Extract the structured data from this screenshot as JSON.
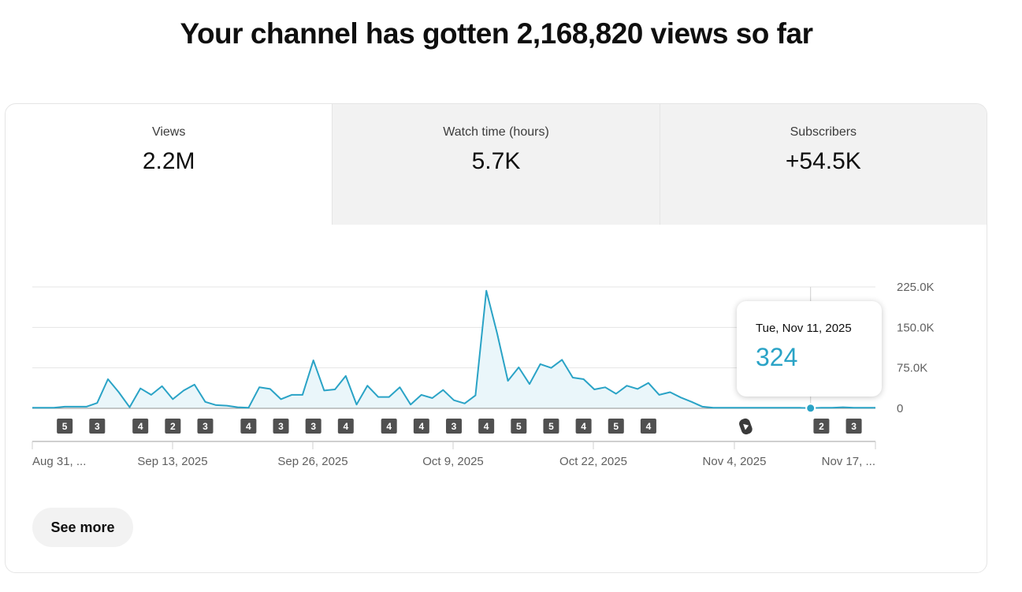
{
  "headline": "Your channel has gotten 2,168,820 views so far",
  "tabs": [
    {
      "label": "Views",
      "value": "2.2M",
      "active": true
    },
    {
      "label": "Watch time (hours)",
      "value": "5.7K",
      "active": false
    },
    {
      "label": "Subscribers",
      "value": "+54.5K",
      "active": false
    }
  ],
  "see_more_label": "See more",
  "tooltip": {
    "date": "Tue, Nov 11, 2025",
    "value": "324"
  },
  "colors": {
    "line": "#2aa3c6",
    "area": "#eaf6fa",
    "marker_bg": "#505050",
    "grid": "#e5e5e5"
  },
  "chart_data": {
    "type": "area",
    "metric": "Views",
    "x_tick_labels": [
      "Aug 31, ...",
      "Sep 13, 2025",
      "Sep 26, 2025",
      "Oct 9, 2025",
      "Oct 22, 2025",
      "Nov 4, 2025",
      "Nov 17, ..."
    ],
    "y_tick_labels": [
      "0",
      "75.0K",
      "150.0K",
      "225.0K"
    ],
    "ylim": [
      0,
      225000
    ],
    "grid": true,
    "start_date": "Aug 31, 2025",
    "values": [
      1000,
      1000,
      1000,
      3000,
      3000,
      3000,
      10000,
      54000,
      30000,
      2000,
      37000,
      25000,
      41000,
      17000,
      33000,
      44000,
      12000,
      6000,
      5000,
      2000,
      1000,
      39000,
      36000,
      17000,
      25000,
      25000,
      89000,
      33000,
      35000,
      60000,
      7000,
      42000,
      21000,
      21000,
      39000,
      7000,
      25000,
      19000,
      34000,
      15000,
      9000,
      24000,
      218000,
      139000,
      51000,
      76000,
      45000,
      82000,
      75000,
      90000,
      57000,
      54000,
      35000,
      39000,
      27000,
      42000,
      36000,
      47000,
      25000,
      30000,
      20000,
      12000,
      3000,
      1000,
      1000,
      1000,
      1000,
      1000,
      1000,
      1000,
      1000,
      1000,
      324,
      1000,
      1000,
      2000,
      1000,
      1000,
      1000
    ],
    "upload_markers": [
      {
        "date": "Sep 3, 2025",
        "count": "5"
      },
      {
        "date": "Sep 6, 2025",
        "count": "3"
      },
      {
        "date": "Sep 10, 2025",
        "count": "4"
      },
      {
        "date": "Sep 13, 2025",
        "count": "2"
      },
      {
        "date": "Sep 16, 2025",
        "count": "3"
      },
      {
        "date": "Sep 20, 2025",
        "count": "4"
      },
      {
        "date": "Sep 23, 2025",
        "count": "3"
      },
      {
        "date": "Sep 26, 2025",
        "count": "3"
      },
      {
        "date": "Sep 29, 2025",
        "count": "4"
      },
      {
        "date": "Oct 3, 2025",
        "count": "4"
      },
      {
        "date": "Oct 6, 2025",
        "count": "4"
      },
      {
        "date": "Oct 9, 2025",
        "count": "3"
      },
      {
        "date": "Oct 12, 2025",
        "count": "4"
      },
      {
        "date": "Oct 15, 2025",
        "count": "5"
      },
      {
        "date": "Oct 18, 2025",
        "count": "5"
      },
      {
        "date": "Oct 21, 2025",
        "count": "4"
      },
      {
        "date": "Oct 24, 2025",
        "count": "5"
      },
      {
        "date": "Oct 27, 2025",
        "count": "4"
      },
      {
        "date": "Nov 12, 2025",
        "count": "2"
      },
      {
        "date": "Nov 15, 2025",
        "count": "3"
      }
    ],
    "shorts_marker": {
      "date": "Nov 5, 2025",
      "icon": "shorts-icon"
    },
    "highlight": {
      "date": "Nov 11, 2025",
      "value": 324
    }
  }
}
